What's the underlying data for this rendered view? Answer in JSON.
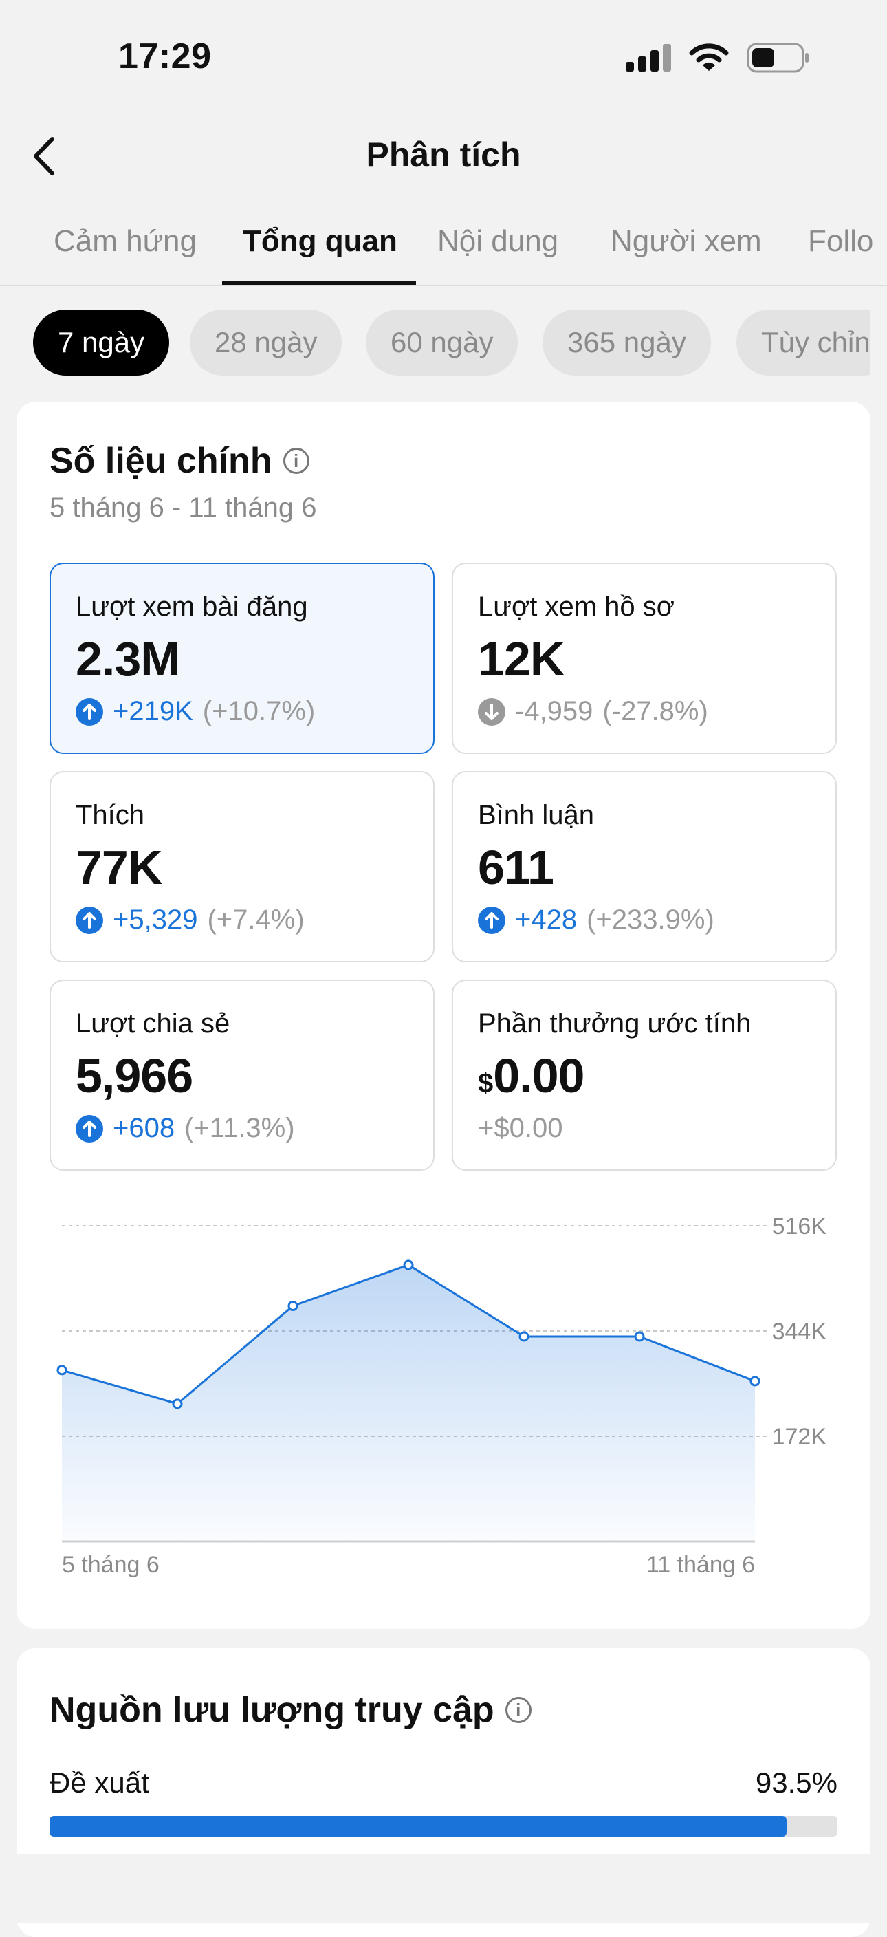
{
  "status_bar": {
    "time": "17:29"
  },
  "header": {
    "title": "Phân tích"
  },
  "tabs": [
    {
      "label": "Cảm hứng",
      "active": false
    },
    {
      "label": "Tổng quan",
      "active": true
    },
    {
      "label": "Nội dung",
      "active": false
    },
    {
      "label": "Người xem",
      "active": false
    },
    {
      "label": "Follo",
      "active": false
    }
  ],
  "periods": [
    {
      "label": "7 ngày",
      "active": true
    },
    {
      "label": "28 ngày",
      "active": false
    },
    {
      "label": "60 ngày",
      "active": false
    },
    {
      "label": "365 ngày",
      "active": false
    },
    {
      "label": "Tùy chỉn",
      "active": false
    }
  ],
  "key_metrics": {
    "title": "Số liệu chính",
    "date_range": "5 tháng 6 - 11 tháng 6",
    "cards": [
      {
        "label": "Lượt xem bài đăng",
        "value": "2.3M",
        "delta": "+219K",
        "pct": "(+10.7%)",
        "trend": "up",
        "selected": true
      },
      {
        "label": "Lượt xem hồ sơ",
        "value": "12K",
        "delta": "-4,959",
        "pct": "(-27.8%)",
        "trend": "down",
        "selected": false
      },
      {
        "label": "Thích",
        "value": "77K",
        "delta": "+5,329",
        "pct": "(+7.4%)",
        "trend": "up",
        "selected": false
      },
      {
        "label": "Bình luận",
        "value": "611",
        "delta": "+428",
        "pct": "(+233.9%)",
        "trend": "up",
        "selected": false
      },
      {
        "label": "Lượt chia sẻ",
        "value": "5,966",
        "delta": "+608",
        "pct": "(+11.3%)",
        "trend": "up",
        "selected": false
      },
      {
        "label": "Phần thưởng ước tính",
        "currency": "$",
        "value": "0.00",
        "delta": "+$0.00",
        "pct": "",
        "trend": "neutral",
        "selected": false
      }
    ]
  },
  "chart_data": {
    "type": "area",
    "x": [
      "5 tháng 6",
      "6 tháng 6",
      "7 tháng 6",
      "8 tháng 6",
      "9 tháng 6",
      "10 tháng 6",
      "11 tháng 6"
    ],
    "values": [
      280000,
      225000,
      385000,
      452000,
      335000,
      335000,
      262000
    ],
    "ylim": [
      0,
      516000
    ],
    "y_ticks": [
      "516K",
      "344K",
      "172K"
    ],
    "y_tick_values": [
      516000,
      344000,
      172000
    ],
    "x_tick_labels": [
      "5 tháng 6",
      "11 tháng 6"
    ],
    "grid": true,
    "color": "#1a73d9"
  },
  "traffic": {
    "title": "Nguồn lưu lượng truy cập",
    "items": [
      {
        "label": "Đề xuất",
        "value": "93.5%",
        "fraction": 0.935
      }
    ]
  },
  "colors": {
    "accent": "#1a73d9",
    "neutral": "#9a9a9a"
  }
}
